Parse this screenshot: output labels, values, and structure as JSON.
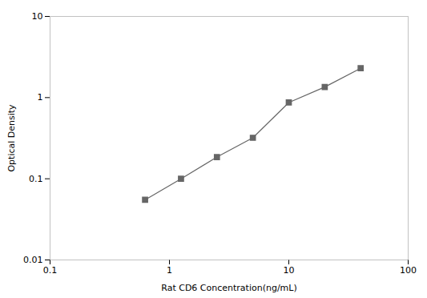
{
  "chart_data": {
    "type": "line",
    "xlabel": "Rat CD6 Concentration(ng/mL)",
    "ylabel": "Optical Density",
    "x": [
      0.625,
      1.25,
      2.5,
      5.0,
      10.0,
      20.0,
      40.0
    ],
    "values": [
      0.055,
      0.1,
      0.185,
      0.32,
      0.87,
      1.35,
      2.3
    ],
    "xlim": [
      0.1,
      100
    ],
    "ylim": [
      0.01,
      10
    ],
    "xticks": [
      0.1,
      1,
      10,
      100
    ],
    "yticks": [
      0.01,
      0.1,
      1,
      10
    ],
    "log": true,
    "grid": false,
    "color": "#666666",
    "marker": "square"
  }
}
